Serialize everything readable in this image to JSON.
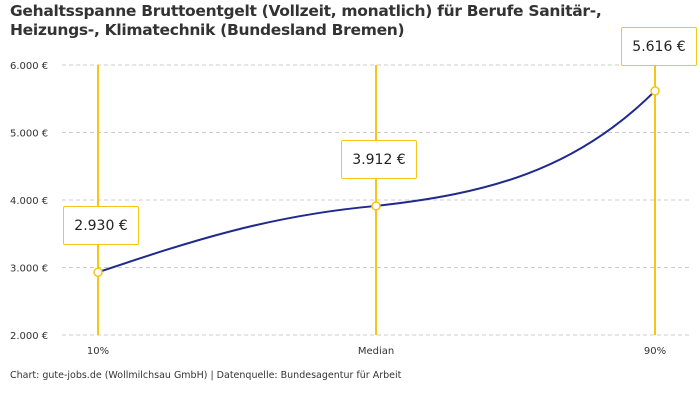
{
  "title": "Gehaltsspanne Bruttoentgelt (Vollzeit, monatlich) für Berufe Sanitär-, Heizungs-, Klimatechnik (Bundesland Bremen)",
  "footer": "Chart: gute-jobs.de (Wollmilchsau GmbH) | Datenquelle: Bundesagentur für Arbeit",
  "colors": {
    "line": "#1f2a8c",
    "marker": "#f5c518",
    "grid": "#cccccc"
  },
  "chart_data": {
    "type": "line",
    "categories": [
      "10%",
      "Median",
      "90%"
    ],
    "values": [
      2930,
      3912,
      5616
    ],
    "value_labels": [
      "2.930 €",
      "3.912 €",
      "5.616 €"
    ],
    "yticks": [
      2000,
      3000,
      4000,
      5000,
      6000
    ],
    "ytick_labels": [
      "2.000 €",
      "3.000 €",
      "4.000 €",
      "5.000 €",
      "6.000 €"
    ],
    "ylim": [
      2000,
      6000
    ],
    "grid": "horizontal dashed",
    "xlabel": "",
    "ylabel": ""
  }
}
